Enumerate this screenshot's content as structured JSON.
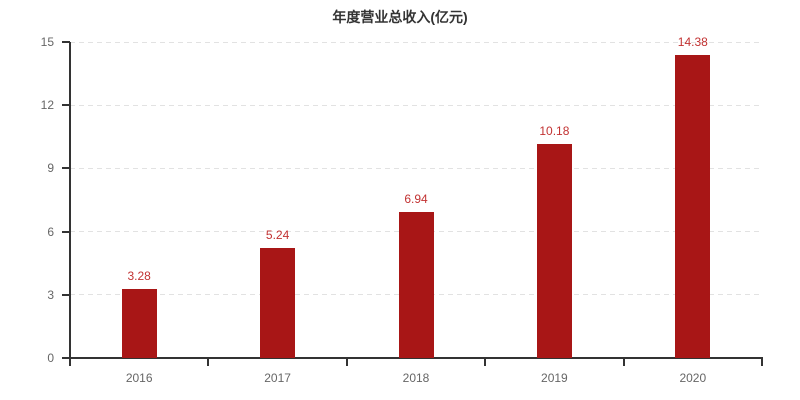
{
  "colors": {
    "background": "#ffffff",
    "title_text": "#333333",
    "axis_line": "#333333",
    "axis_label": "#666666",
    "grid_line": "#e2e2e2",
    "bar": "#a81616",
    "value_label": "#c23232"
  },
  "chart_data": {
    "type": "bar",
    "title": "年度营业总收入(亿元)",
    "categories": [
      "2016",
      "2017",
      "2018",
      "2019",
      "2020"
    ],
    "values": [
      3.28,
      5.24,
      6.94,
      10.18,
      14.38
    ],
    "value_labels": [
      "3.28",
      "5.24",
      "6.94",
      "10.18",
      "14.38"
    ],
    "series_name": "年度营业总收入",
    "unit": "亿元",
    "xlabel": "",
    "ylabel": "",
    "ylim": [
      0,
      15
    ],
    "y_tick_interval": 3,
    "y_ticks": [
      0,
      3,
      6,
      9,
      12,
      15
    ],
    "grid": "horizontal dashed",
    "legend": "none"
  }
}
